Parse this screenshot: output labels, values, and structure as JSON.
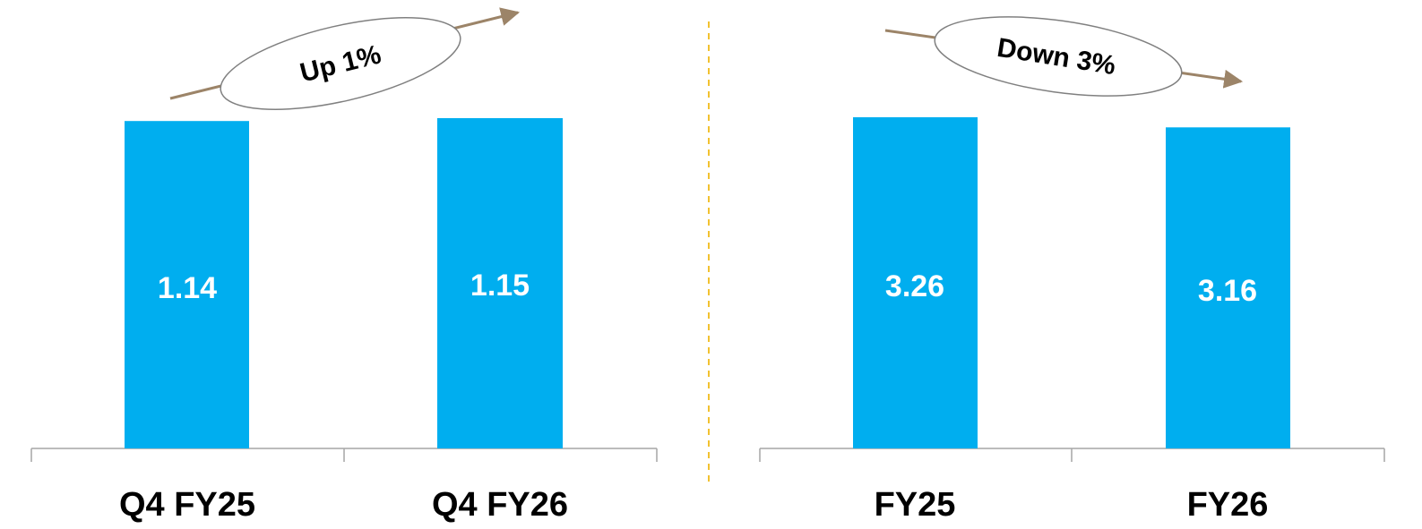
{
  "colors": {
    "bar": "#00AEEF",
    "arrow": "#9C8468",
    "divider": "#F2C230",
    "axis": "#A6A6A6"
  },
  "chart_data": [
    {
      "type": "bar",
      "categories": [
        "Q4 FY25",
        "Q4 FY26"
      ],
      "values": [
        1.14,
        1.15
      ],
      "data_labels": [
        "1.14",
        "1.15"
      ],
      "annotation": {
        "text": "Up 1%",
        "direction": "up"
      }
    },
    {
      "type": "bar",
      "categories": [
        "FY25",
        "FY26"
      ],
      "values": [
        3.26,
        3.16
      ],
      "data_labels": [
        "3.26",
        "3.16"
      ],
      "annotation": {
        "text": "Down 3%",
        "direction": "down"
      }
    }
  ]
}
